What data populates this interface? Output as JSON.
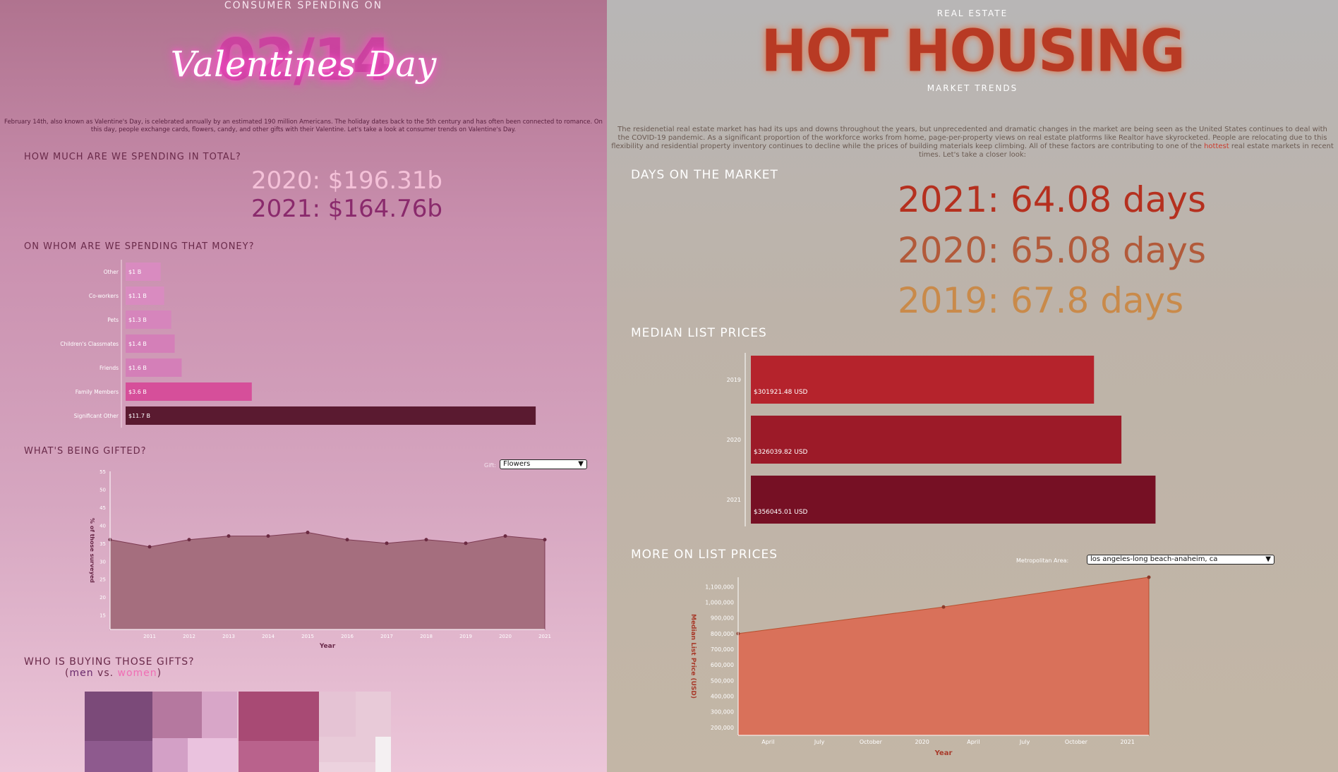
{
  "left": {
    "overtitle": "CONSUMER SPENDING ON",
    "big_date": "02/14",
    "script_title": "Valentines Day",
    "intro": "February 14th, also known as Valentine's Day, is celebrated annually by an estimated 190 million Americans. The holiday dates back to the 5th century and has often been connected to romance. On this day, people exchange cards, flowers, candy, and other gifts with their Valentine. Let's take a look at consumer trends on Valentine's Day.",
    "sections": {
      "total": "HOW MUCH ARE WE SPENDING IN TOTAL?",
      "whom": "ON WHOM ARE WE SPENDING THAT MONEY?",
      "gifted": "WHAT'S BEING GIFTED?",
      "buying": "WHO IS BUYING THOSE GIFTS?"
    },
    "totals": [
      "2020: $196.31b",
      "2021: $164.76b"
    ],
    "buying_sub": {
      "open": "(",
      "men": "men",
      "vs": " vs. ",
      "women": "women",
      "close": ")"
    },
    "gift_select": {
      "label": "Gift:",
      "value": "Flowers"
    }
  },
  "right": {
    "overtitle": "REAL ESTATE",
    "title": "HOT HOUSING",
    "subtitle": "MARKET TRENDS",
    "intro_a": "The residenetial real estate market has had its ups and downs throughout the years, but unprecedented and dramatic changes in the market are being seen as the United States continues to deal with the COVID-19 pandemic. As a significant proportion of the workforce works from home, page-per-property views on real estate platforms like Realtor have skyrocketed. People are relocating due to this flexibility and residential property inventory continues to decline while the prices of building materials keep climbing. All of these factors are contributing to one of the",
    "intro_hot": "hottest",
    "intro_b": "real estate markets in recent times. Let's take a closer look:",
    "sections": {
      "days": "DAYS ON THE MARKET",
      "median": "MEDIAN LIST PRICES",
      "more": "MORE ON LIST PRICES"
    },
    "days": [
      "2021: 64.08 days",
      "2020: 65.08 days",
      "2019: 67.8 days"
    ],
    "metro_select": {
      "label": "Metropolitan Area:",
      "value": "los angeles-long beach-anaheim, ca"
    }
  },
  "colors": {
    "days_2021": "#b5301f",
    "days_2020": "#b25a3a",
    "days_2019": "#c98a4a",
    "area_left": "#a56e7e",
    "area_right": "#d9715a"
  },
  "chart_data": [
    {
      "id": "spend_by_recipient",
      "type": "bar",
      "orientation": "horizontal",
      "categories": [
        "Other",
        "Co-workers",
        "Pets",
        "Children's Classmates",
        "Friends",
        "Family Members",
        "Significant Other"
      ],
      "values": [
        1.0,
        1.1,
        1.3,
        1.4,
        1.6,
        3.6,
        11.7
      ],
      "labels": [
        "$1 B",
        "$1.1 B",
        "$1.3 B",
        "$1.4 B",
        "$1.6 B",
        "$3.6 B",
        "$11.7 B"
      ],
      "colors": [
        "#d98bc0",
        "#d98bc0",
        "#d685bc",
        "#d47fb8",
        "#d47fb8",
        "#d64f9a",
        "#5a1a30"
      ],
      "xlim": [
        0,
        12
      ]
    },
    {
      "id": "gift_share",
      "type": "area",
      "x": [
        2010,
        2011,
        2012,
        2013,
        2014,
        2015,
        2016,
        2017,
        2018,
        2019,
        2020,
        2021
      ],
      "values": [
        36,
        34,
        36,
        37,
        37,
        38,
        36,
        35,
        36,
        35,
        37,
        36
      ],
      "xticks": [
        "2011",
        "2012",
        "2013",
        "2014",
        "2015",
        "2016",
        "2017",
        "2018",
        "2019",
        "2020",
        "2021"
      ],
      "yticks": [
        "15",
        "20",
        "25",
        "30",
        "35",
        "40",
        "45",
        "50",
        "55"
      ],
      "ylim": [
        11,
        55
      ],
      "xlabel": "Year",
      "ylabel": "% of those surveyed"
    },
    {
      "id": "median_list_prices",
      "type": "bar",
      "orientation": "horizontal",
      "categories": [
        "2019",
        "2020",
        "2021"
      ],
      "values": [
        301921.48,
        326039.82,
        356045.01
      ],
      "labels": [
        "$301921.48 USD",
        "$326039.82 USD",
        "$356045.01 USD"
      ],
      "colors": [
        "#b5232c",
        "#9c1a28",
        "#761024"
      ],
      "xlim": [
        0,
        380000
      ]
    },
    {
      "id": "metro_list_prices",
      "type": "area",
      "x_months": [
        0,
        13,
        26
      ],
      "values": [
        800000,
        970000,
        1160000
      ],
      "xticks": [
        "April",
        "July",
        "October",
        "2020",
        "April",
        "July",
        "October",
        "2021"
      ],
      "yticks": [
        "200,000",
        "300,000",
        "400,000",
        "500,000",
        "600,000",
        "700,000",
        "800,000",
        "900,000",
        "1,000,000",
        "1,100,000"
      ],
      "ylim": [
        150000,
        1160000
      ],
      "xlabel": "Year",
      "ylabel": "Median List Price (USD)"
    }
  ]
}
